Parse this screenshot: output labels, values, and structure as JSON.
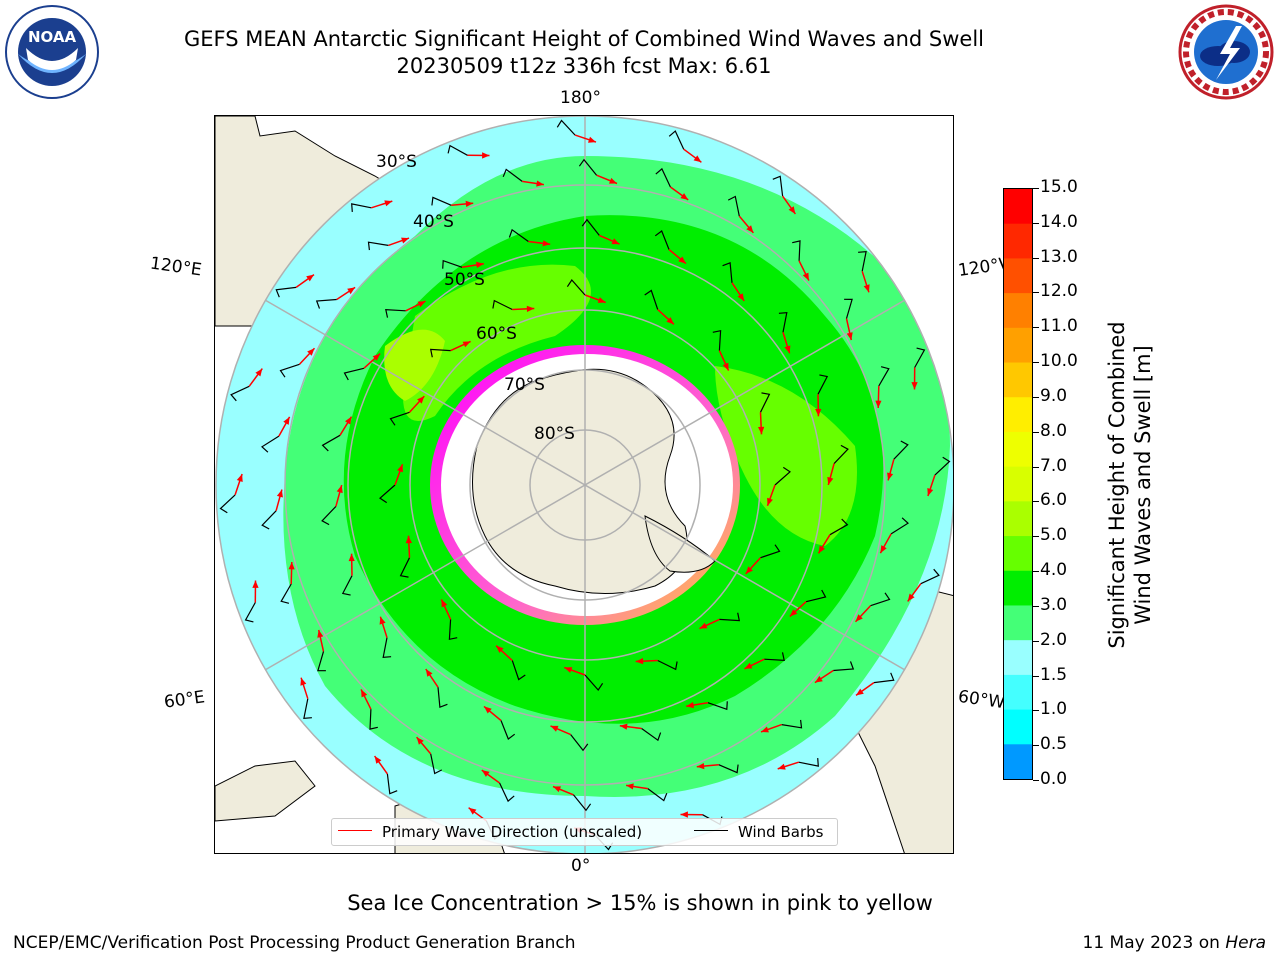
{
  "title": {
    "line1": "GEFS MEAN Antarctic Significant Height of Combined Wind Waves and Swell",
    "line2": "20230509 t12z 336h fcst   Max: 6.61"
  },
  "logos": {
    "noaa": {
      "text": "NOAA",
      "icon": "noaa-logo"
    },
    "nws": {
      "text": "NATIONAL WEATHER SERVICE",
      "icon": "nws-logo"
    }
  },
  "map": {
    "projection": "south-polar-stereographic",
    "longitude_labels": {
      "top": "180°",
      "bottom": "0°",
      "upper_left": "120°E",
      "upper_right": "120°W",
      "lower_left": "60°E",
      "lower_right": "60°W"
    },
    "latitude_labels": [
      "30°S",
      "40°S",
      "50°S",
      "60°S",
      "70°S",
      "80°S"
    ],
    "colors": {
      "land": "#efecdc",
      "sea_ice_low": "#ff00ff",
      "sea_ice_high": "#ffff00",
      "wave_arrow": "#ff0000",
      "wind_barb": "#000000",
      "graticule": "#b0b0b0"
    }
  },
  "legend": {
    "wave": "Primary Wave Direction (unscaled)",
    "wind": "Wind Barbs"
  },
  "colorbar": {
    "label_line1": "Significant Height of Combined",
    "label_line2": "Wind Waves and Swell [m]",
    "ticks": [
      "15.0",
      "14.0",
      "13.0",
      "12.0",
      "11.0",
      "10.0",
      "9.0",
      "8.0",
      "7.0",
      "6.0",
      "5.0",
      "4.0",
      "3.0",
      "2.0",
      "1.5",
      "1.0",
      "0.5",
      "0.0"
    ],
    "colors": [
      "#ff0000",
      "#ff2800",
      "#ff5000",
      "#ff8000",
      "#ffa000",
      "#ffc800",
      "#ffee00",
      "#eeff00",
      "#d8ff00",
      "#aaff00",
      "#66ff00",
      "#00ee00",
      "#44ff77",
      "#99ffff",
      "#44ffff",
      "#00ffff",
      "#0099ff",
      "#0066ff",
      "#0000ff"
    ]
  },
  "ice_note": "Sea Ice Concentration > 15% is shown in pink to yellow",
  "footer": {
    "left": "NCEP/EMC/Verification Post Processing Product Generation Branch",
    "right_date": "11 May 2023 on ",
    "right_host": "Hera"
  }
}
